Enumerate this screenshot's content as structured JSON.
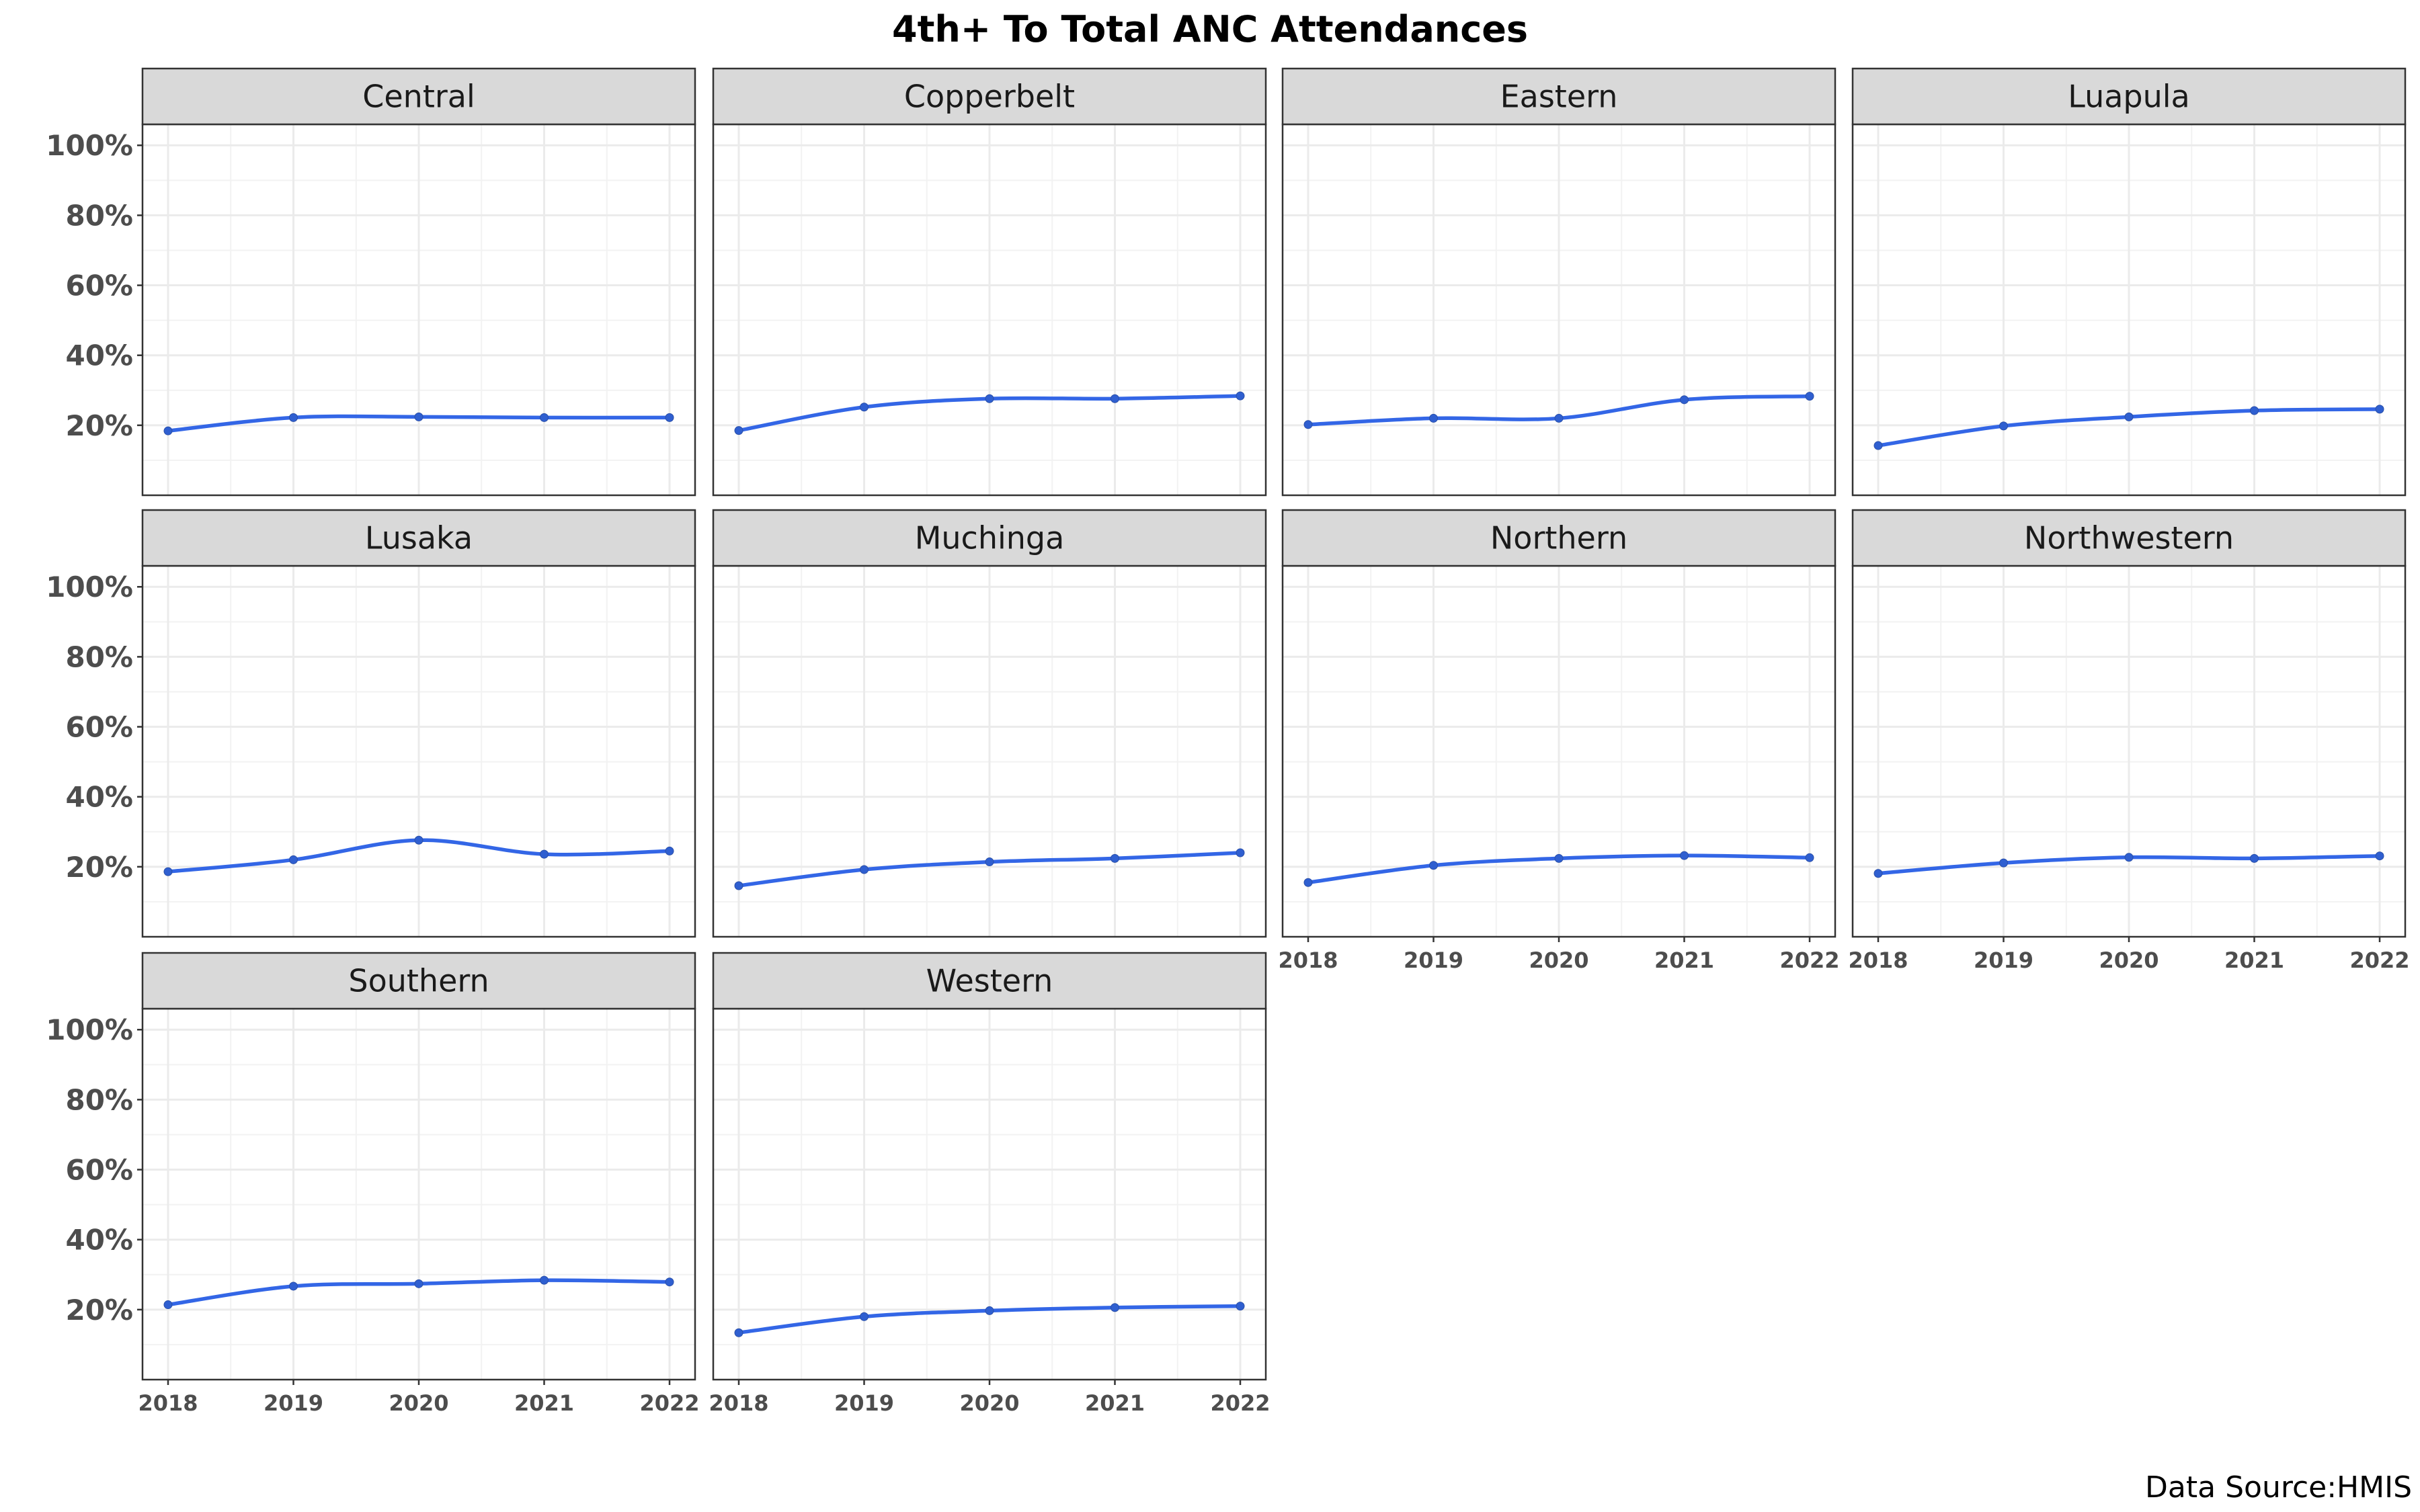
{
  "chart_data": {
    "type": "line",
    "title": "4th+ To Total ANC Attendances",
    "caption": "Data Source:HMIS",
    "x": [
      "2018",
      "2019",
      "2020",
      "2021",
      "2022"
    ],
    "ylim": [
      0,
      1.06
    ],
    "y_ticks": [
      "20%",
      "40%",
      "60%",
      "80%",
      "100%"
    ],
    "y_tick_values": [
      0.2,
      0.4,
      0.6,
      0.8,
      1.0
    ],
    "grid": true,
    "line_color": "#3366e6",
    "facets": [
      {
        "name": "Central",
        "values": [
          0.184,
          0.222,
          0.224,
          0.222,
          0.222
        ]
      },
      {
        "name": "Copperbelt",
        "values": [
          0.185,
          0.252,
          0.276,
          0.276,
          0.284
        ]
      },
      {
        "name": "Eastern",
        "values": [
          0.202,
          0.22,
          0.22,
          0.273,
          0.283
        ]
      },
      {
        "name": "Luapula",
        "values": [
          0.142,
          0.198,
          0.224,
          0.242,
          0.246
        ]
      },
      {
        "name": "Lusaka",
        "values": [
          0.186,
          0.22,
          0.276,
          0.236,
          0.245
        ]
      },
      {
        "name": "Muchinga",
        "values": [
          0.146,
          0.192,
          0.214,
          0.224,
          0.24
        ]
      },
      {
        "name": "Northern",
        "values": [
          0.155,
          0.204,
          0.224,
          0.232,
          0.226
        ]
      },
      {
        "name": "Northwestern",
        "values": [
          0.181,
          0.211,
          0.227,
          0.224,
          0.231
        ]
      },
      {
        "name": "Southern",
        "values": [
          0.214,
          0.267,
          0.274,
          0.284,
          0.279
        ]
      },
      {
        "name": "Western",
        "values": [
          0.134,
          0.18,
          0.197,
          0.206,
          0.21
        ]
      }
    ]
  }
}
